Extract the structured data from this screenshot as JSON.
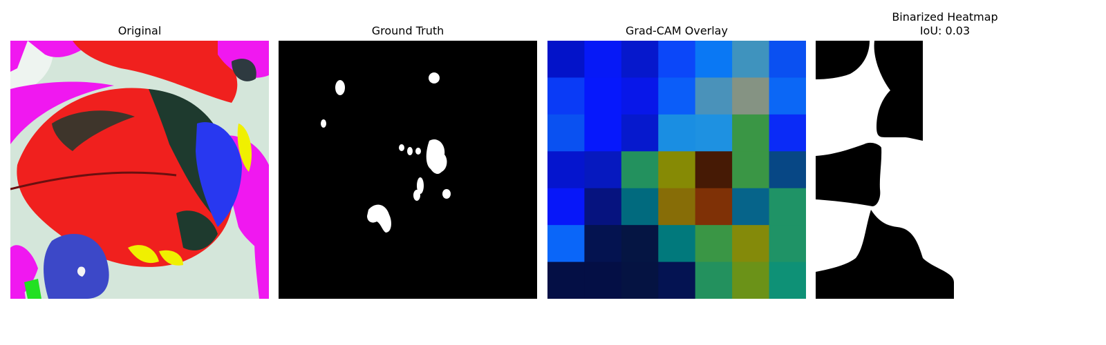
{
  "panels": [
    {
      "title": "Original",
      "subtitle": ""
    },
    {
      "title": "Ground Truth",
      "subtitle": ""
    },
    {
      "title": "Grad-CAM Overlay",
      "subtitle": ""
    },
    {
      "title": "Binarized Heatmap",
      "subtitle": "IoU: 0.03"
    }
  ],
  "gradcam_grid": [
    [
      "#0313C9",
      "#0619F7",
      "#0618CC",
      "#0B47F9",
      "#0A78F4",
      "#3F93BE",
      "#0A50F1"
    ],
    [
      "#0A3BF6",
      "#0618FC",
      "#0817E9",
      "#0B5DF9",
      "#4A92BA",
      "#859383",
      "#0B67F6"
    ],
    [
      "#0A51F1",
      "#0618FC",
      "#0619CD",
      "#1A8EE2",
      "#1E91E1",
      "#3A9645",
      "#0A2BF7"
    ],
    [
      "#0515CE",
      "#0619BF",
      "#23915E",
      "#868A05",
      "#461A05",
      "#3A9645",
      "#074785"
    ],
    [
      "#0717F9",
      "#06137F",
      "#016A7E",
      "#876D07",
      "#7F3106",
      "#06648A",
      "#1F9366"
    ],
    [
      "#0A66F9",
      "#041350",
      "#051543",
      "#01797C",
      "#3A9645",
      "#848A0A",
      "#1F9366"
    ],
    [
      "#040F45",
      "#040F45",
      "#051342",
      "#041352",
      "#23915E",
      "#6B9218",
      "#0E9176"
    ]
  ],
  "colors": {
    "leaf_red": "#F0201E",
    "dark_green": "#1E3A2E",
    "magenta": "#F018F0",
    "blue": "#2838F0",
    "yellow": "#F0F000",
    "pale_bg": "#D0E8D8"
  }
}
